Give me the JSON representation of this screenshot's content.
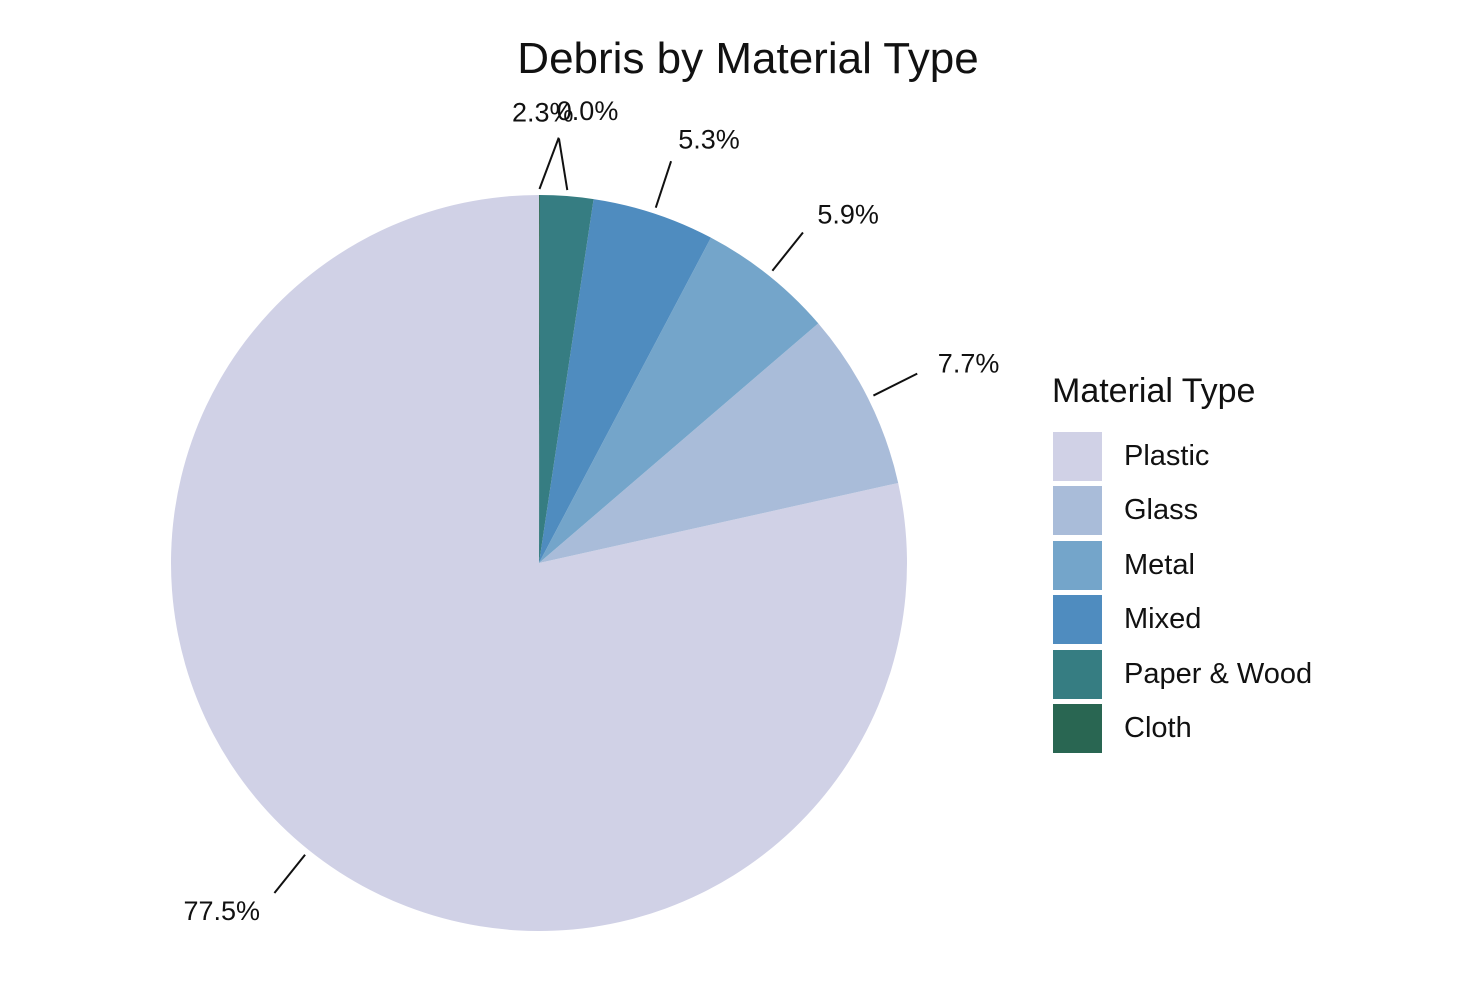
{
  "chart_data": {
    "type": "pie",
    "title": "Debris by Material Type",
    "legend_title": "Material Type",
    "legend_position": "right",
    "slices": [
      {
        "label": "Plastic",
        "value": 77.5,
        "percent_label": "77.5%",
        "color": "#d0d1e6"
      },
      {
        "label": "Glass",
        "value": 7.7,
        "percent_label": "7.7%",
        "color": "#a9bcd9"
      },
      {
        "label": "Metal",
        "value": 5.9,
        "percent_label": "5.9%",
        "color": "#74a5ca"
      },
      {
        "label": "Mixed",
        "value": 5.3,
        "percent_label": "5.3%",
        "color": "#4f8cbf"
      },
      {
        "label": "Paper & Wood",
        "value": 2.3,
        "percent_label": "2.3%",
        "color": "#367d82"
      },
      {
        "label": "Cloth",
        "value": 0.04,
        "percent_label": "0.0%",
        "color": "#296652"
      }
    ]
  }
}
